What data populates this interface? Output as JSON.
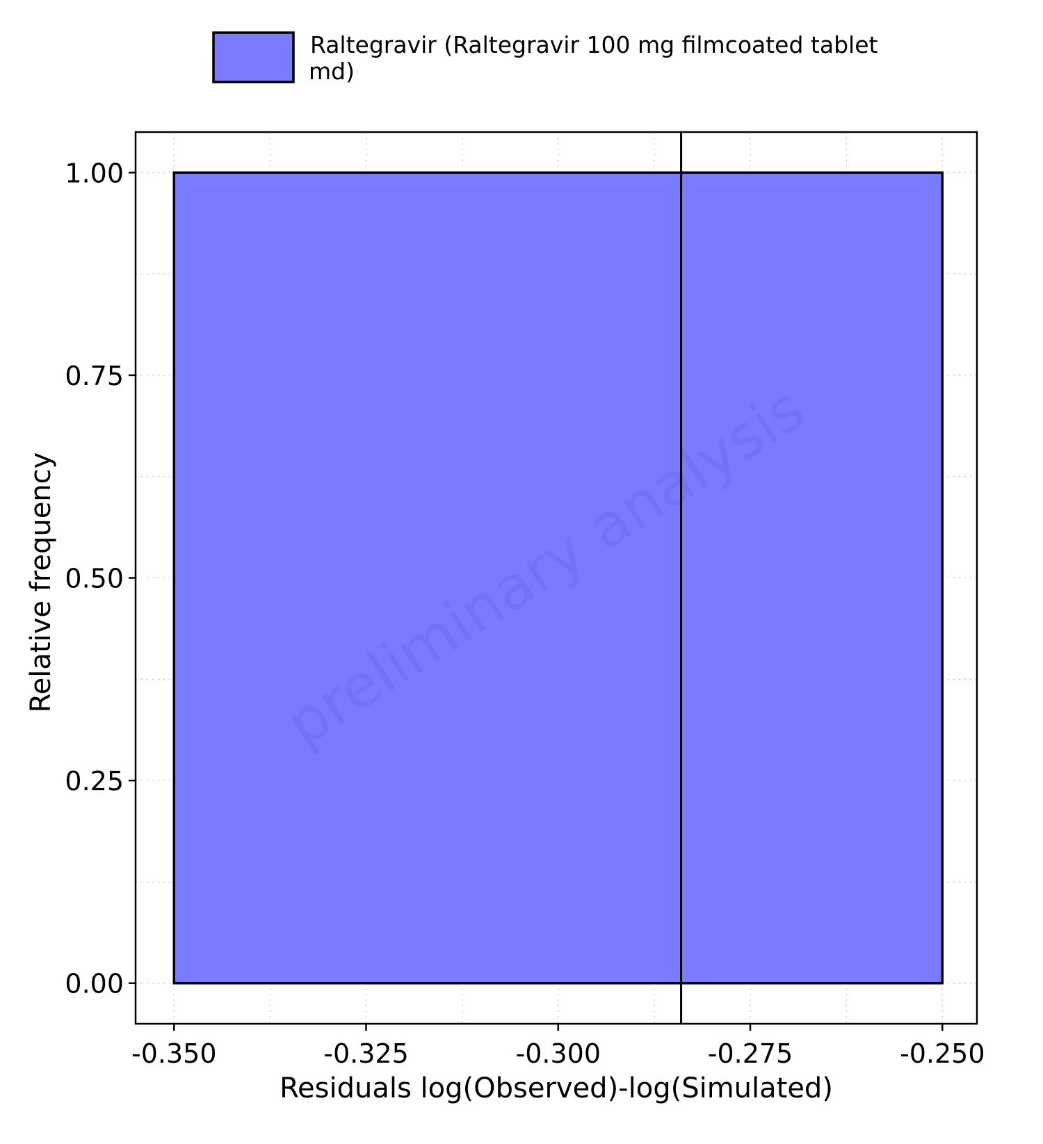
{
  "chart_data": {
    "type": "bar",
    "legend": {
      "position": "top",
      "entries": [
        {
          "label_lines": [
            "Raltegravir (Raltegravir 100 mg filmcoated tablet",
            "md)"
          ],
          "color": "#7b7bff"
        }
      ]
    },
    "xlabel": "Residuals log(Observed)-log(Simulated)",
    "ylabel": "Relative frequency",
    "xlim": [
      -0.355,
      -0.2455
    ],
    "ylim": [
      -0.05,
      1.05
    ],
    "x_ticks": [
      -0.35,
      -0.325,
      -0.3,
      -0.275,
      -0.25
    ],
    "x_tick_labels": [
      "-0.350",
      "-0.325",
      "-0.300",
      "-0.275",
      "-0.250"
    ],
    "y_ticks": [
      0,
      0.25,
      0.5,
      0.75,
      1
    ],
    "y_tick_labels": [
      "0.00",
      "0.25",
      "0.50",
      "0.75",
      "1.00"
    ],
    "x_minor_grid": [
      -0.3375,
      -0.3125,
      -0.2875,
      -0.2625
    ],
    "y_minor_grid": [
      0.125,
      0.375,
      0.625,
      0.875
    ],
    "grid": true,
    "bins": [
      {
        "x_start": -0.35,
        "x_end": -0.25,
        "value": 1.0,
        "color": "#7b7bff"
      }
    ],
    "vertical_line": {
      "x": -0.284
    },
    "watermark": "preliminary analysis"
  }
}
